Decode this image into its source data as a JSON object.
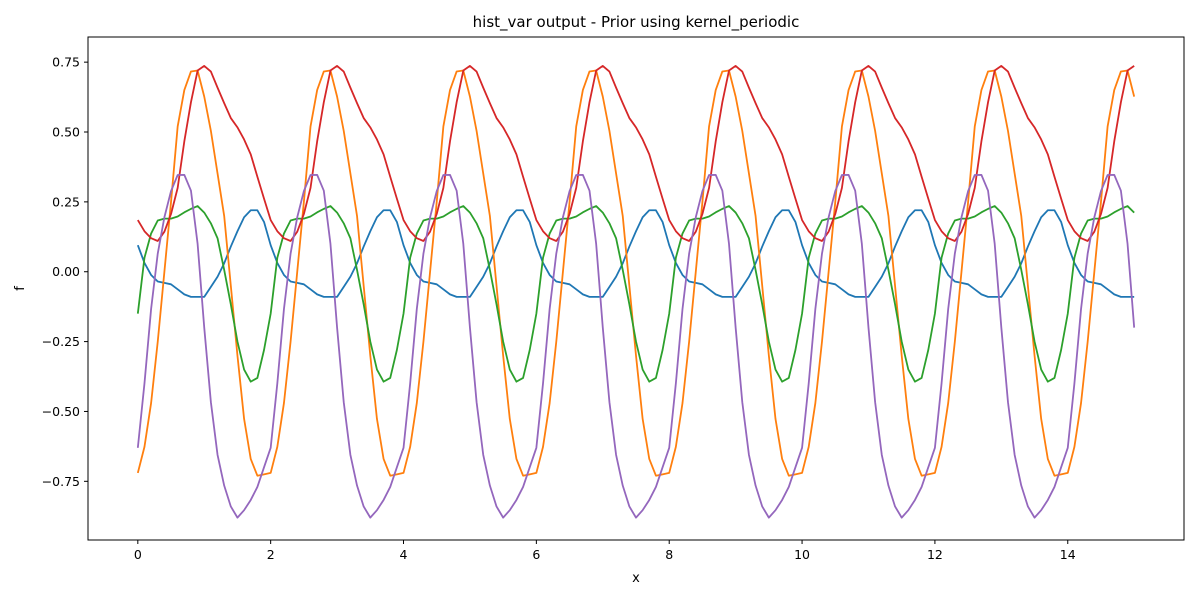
{
  "chart_data": {
    "type": "line",
    "title": "hist_var output - Prior using kernel_periodic",
    "xlabel": "x",
    "ylabel": "f",
    "xlim": [
      -0.75,
      15.75
    ],
    "ylim": [
      -0.96,
      0.84
    ],
    "xticks": [
      0,
      2,
      4,
      6,
      8,
      10,
      12,
      14
    ],
    "yticks": [
      -0.75,
      -0.5,
      -0.25,
      0.0,
      0.25,
      0.5,
      0.75
    ],
    "xtick_labels": [
      "0",
      "2",
      "4",
      "6",
      "8",
      "10",
      "12",
      "14"
    ],
    "ytick_labels": [
      "−0.75",
      "−0.50",
      "−0.25",
      "0.00",
      "0.25",
      "0.50",
      "0.75"
    ],
    "grid": false,
    "legend": "none",
    "x_domain": [
      0,
      15
    ],
    "num_points": 151,
    "series": [
      {
        "color": "#1f77b4",
        "period": 2.0,
        "points": [
          [
            0,
            0.095
          ],
          [
            0.15,
            0.0
          ],
          [
            0.3,
            -0.035
          ],
          [
            0.5,
            -0.045
          ],
          [
            0.75,
            -0.09
          ],
          [
            1.0,
            -0.09
          ],
          [
            1.25,
            0.0
          ],
          [
            1.45,
            0.12
          ],
          [
            1.65,
            0.22
          ],
          [
            1.85,
            0.22
          ],
          [
            2.0,
            0.095
          ]
        ]
      },
      {
        "color": "#ff7f0e",
        "period": 2.0,
        "points": [
          [
            0,
            -0.72
          ],
          [
            0.15,
            -0.58
          ],
          [
            0.3,
            -0.25
          ],
          [
            0.5,
            0.25
          ],
          [
            0.6,
            0.52
          ],
          [
            0.75,
            0.715
          ],
          [
            0.9,
            0.72
          ],
          [
            1.05,
            0.58
          ],
          [
            1.3,
            0.2
          ],
          [
            1.5,
            -0.3
          ],
          [
            1.65,
            -0.64
          ],
          [
            1.8,
            -0.73
          ],
          [
            2.0,
            -0.72
          ]
        ]
      },
      {
        "color": "#2ca02c",
        "period": 2.0,
        "points": [
          [
            0,
            -0.15
          ],
          [
            0.1,
            0.05
          ],
          [
            0.25,
            0.18
          ],
          [
            0.4,
            0.19
          ],
          [
            0.55,
            0.19
          ],
          [
            0.75,
            0.22
          ],
          [
            0.9,
            0.235
          ],
          [
            1.05,
            0.2
          ],
          [
            1.2,
            0.12
          ],
          [
            1.35,
            -0.05
          ],
          [
            1.5,
            -0.25
          ],
          [
            1.65,
            -0.4
          ],
          [
            1.8,
            -0.38
          ],
          [
            1.9,
            -0.28
          ],
          [
            2.0,
            -0.15
          ]
        ]
      },
      {
        "color": "#d62728",
        "period": 2.0,
        "points": [
          [
            0,
            0.185
          ],
          [
            0.15,
            0.125
          ],
          [
            0.3,
            0.11
          ],
          [
            0.45,
            0.16
          ],
          [
            0.6,
            0.3
          ],
          [
            0.75,
            0.55
          ],
          [
            0.9,
            0.72
          ],
          [
            1.05,
            0.745
          ],
          [
            1.25,
            0.63
          ],
          [
            1.4,
            0.55
          ],
          [
            1.55,
            0.5
          ],
          [
            1.7,
            0.42
          ],
          [
            1.85,
            0.3
          ],
          [
            2.0,
            0.185
          ]
        ]
      },
      {
        "color": "#9467bd",
        "period": 2.0,
        "points": [
          [
            0,
            -0.63
          ],
          [
            0.1,
            -0.4
          ],
          [
            0.25,
            0.0
          ],
          [
            0.45,
            0.26
          ],
          [
            0.65,
            0.375
          ],
          [
            0.8,
            0.29
          ],
          [
            0.9,
            0.1
          ],
          [
            1.0,
            -0.2
          ],
          [
            1.15,
            -0.6
          ],
          [
            1.35,
            -0.82
          ],
          [
            1.5,
            -0.88
          ],
          [
            1.65,
            -0.84
          ],
          [
            1.8,
            -0.77
          ],
          [
            1.9,
            -0.7
          ],
          [
            2.0,
            -0.63
          ]
        ]
      }
    ]
  }
}
